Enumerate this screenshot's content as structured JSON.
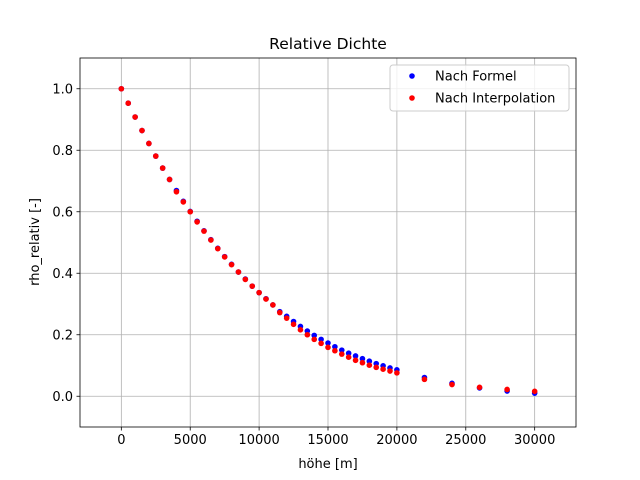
{
  "chart_data": {
    "type": "scatter",
    "title": "Relative Dichte",
    "xlabel": "höhe [m]",
    "ylabel": "rho_relativ [-]",
    "xlim": [
      -3000,
      33000
    ],
    "ylim": [
      -0.1,
      1.1
    ],
    "xticks": [
      0,
      5000,
      10000,
      15000,
      20000,
      25000,
      30000
    ],
    "yticks": [
      0.0,
      0.2,
      0.4,
      0.6,
      0.8,
      1.0
    ],
    "xtick_labels": [
      "0",
      "5000",
      "10000",
      "15000",
      "20000",
      "25000",
      "30000"
    ],
    "ytick_labels": [
      "0.0",
      "0.2",
      "0.4",
      "0.6",
      "0.8",
      "1.0"
    ],
    "grid": true,
    "legend_position": "top-right",
    "series": [
      {
        "name": "Nach Formel",
        "color": "#0000ff",
        "x": [
          0,
          500,
          1000,
          1500,
          2000,
          2500,
          3000,
          3500,
          4000,
          4500,
          5000,
          5500,
          6000,
          6500,
          7000,
          7500,
          8000,
          8500,
          9000,
          9500,
          10000,
          10500,
          11000,
          11500,
          12000,
          12500,
          13000,
          13500,
          14000,
          14500,
          15000,
          15500,
          16000,
          16500,
          17000,
          17500,
          18000,
          18500,
          19000,
          19500,
          20000,
          22000,
          24000,
          26000,
          28000,
          30000
        ],
        "y": [
          1.0,
          0.953,
          0.908,
          0.864,
          0.822,
          0.781,
          0.742,
          0.705,
          0.669,
          0.634,
          0.601,
          0.569,
          0.538,
          0.509,
          0.481,
          0.454,
          0.429,
          0.404,
          0.381,
          0.358,
          0.337,
          0.317,
          0.297,
          0.275,
          0.26,
          0.243,
          0.227,
          0.212,
          0.198,
          0.185,
          0.173,
          0.161,
          0.15,
          0.14,
          0.131,
          0.122,
          0.114,
          0.106,
          0.099,
          0.092,
          0.086,
          0.061,
          0.042,
          0.027,
          0.017,
          0.01
        ]
      },
      {
        "name": "Nach Interpolation",
        "color": "#ff0000",
        "x": [
          0,
          500,
          1000,
          1500,
          2000,
          2500,
          3000,
          3500,
          4000,
          4500,
          5000,
          5500,
          6000,
          6500,
          7000,
          7500,
          8000,
          8500,
          9000,
          9500,
          10000,
          10500,
          11000,
          11500,
          12000,
          12500,
          13000,
          13500,
          14000,
          14500,
          15000,
          15500,
          16000,
          16500,
          17000,
          17500,
          18000,
          18500,
          19000,
          19500,
          20000,
          22000,
          24000,
          26000,
          28000,
          30000
        ],
        "y": [
          1.0,
          0.953,
          0.908,
          0.864,
          0.822,
          0.781,
          0.742,
          0.705,
          0.665,
          0.632,
          0.6,
          0.567,
          0.537,
          0.508,
          0.48,
          0.453,
          0.428,
          0.404,
          0.38,
          0.358,
          0.337,
          0.316,
          0.297,
          0.272,
          0.254,
          0.234,
          0.216,
          0.2,
          0.185,
          0.172,
          0.159,
          0.148,
          0.137,
          0.127,
          0.117,
          0.109,
          0.101,
          0.094,
          0.088,
          0.082,
          0.076,
          0.055,
          0.038,
          0.029,
          0.022,
          0.016
        ]
      }
    ]
  }
}
